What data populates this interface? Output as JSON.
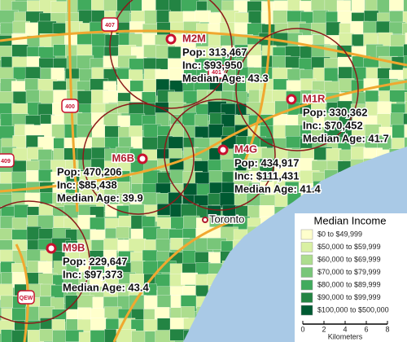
{
  "map": {
    "place_label": "Toronto",
    "highway_shields": [
      "407",
      "400",
      "409",
      "401",
      "QEW"
    ],
    "markers": [
      {
        "code": "M2M",
        "pop": "Pop: 313,467",
        "inc": "Inc: $93,950",
        "age": "Median Age: 43.3"
      },
      {
        "code": "M1R",
        "pop": "Pop: 330,362",
        "inc": "Inc: $70,452",
        "age": "Median Age: 41.7"
      },
      {
        "code": "M4G",
        "pop": "Pop: 434,917",
        "inc": "Inc: $111,431",
        "age": "Median Age: 41.4"
      },
      {
        "code": "M6B",
        "pop": "Pop: 470,206",
        "inc": "Inc: $85,438",
        "age": "Median Age: 39.9"
      },
      {
        "code": "M9B",
        "pop": "Pop: 229,647",
        "inc": "Inc: $97,373",
        "age": "Median Age: 43.4"
      }
    ]
  },
  "legend": {
    "title": "Median Income",
    "items": [
      {
        "label": "$0 to $49,999",
        "color": "#ffffcc"
      },
      {
        "label": "$50,000 to $59,999",
        "color": "#d9f0a3"
      },
      {
        "label": "$60,000 to $69,999",
        "color": "#addd8e"
      },
      {
        "label": "$70,000 to $79,999",
        "color": "#78c679"
      },
      {
        "label": "$80,000 to $89,999",
        "color": "#41ab5d"
      },
      {
        "label": "$90,000 to $99,999",
        "color": "#238443"
      },
      {
        "label": "$100,000 to $500,000",
        "color": "#005a32"
      }
    ]
  },
  "scale": {
    "ticks": [
      0,
      2,
      4,
      6,
      8
    ],
    "unit": "Kilometers"
  }
}
